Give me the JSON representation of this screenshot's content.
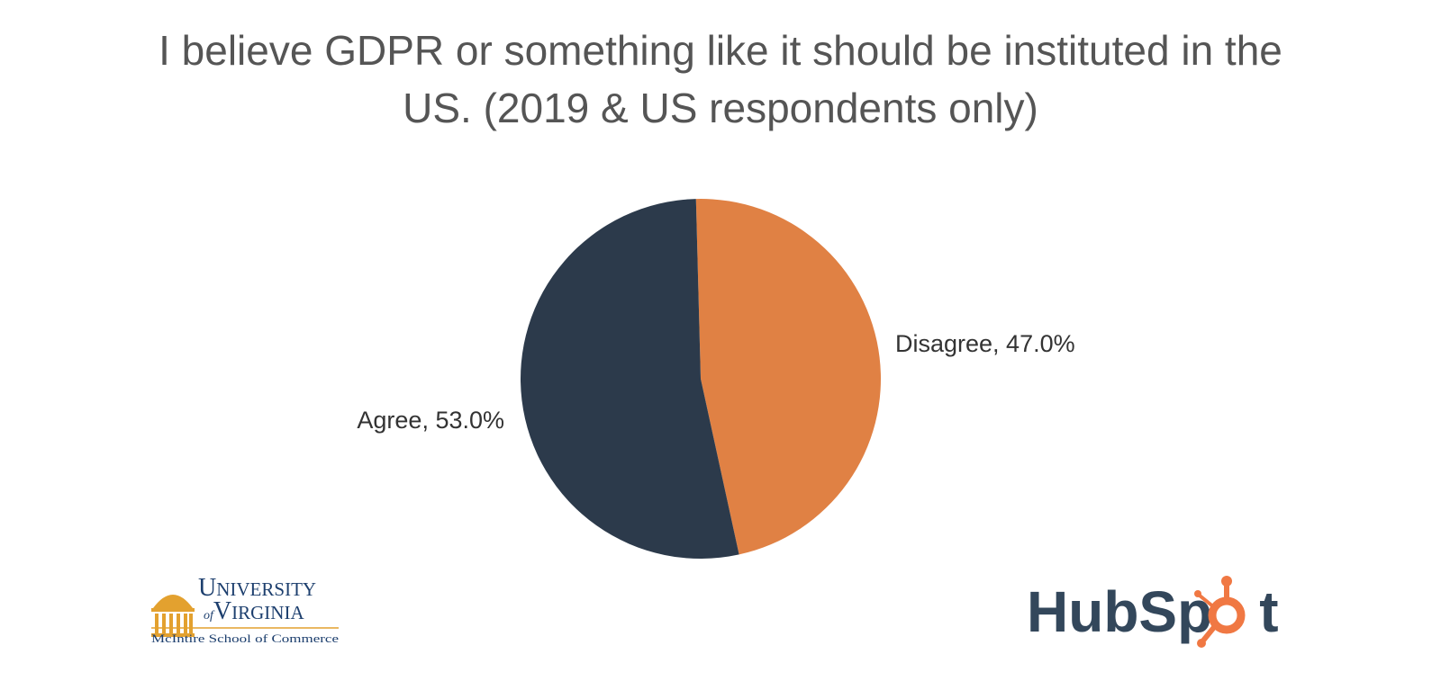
{
  "chart_data": {
    "type": "pie",
    "title": "I believe GDPR or something like it should be instituted in the US. (2019 & US respondents only)",
    "title_line1": "I believe GDPR or something like it should be instituted in the",
    "title_line2": "US. (2019 & US respondents only)",
    "categories": [
      "Disagree",
      "Agree"
    ],
    "values": [
      47.0,
      53.0
    ],
    "data_labels": [
      "Disagree, 47.0%",
      "Agree, 53.0%"
    ],
    "colors": [
      "#e08144",
      "#2c3a4b"
    ],
    "start_angle_deg": -1.5
  },
  "logos": {
    "uva": {
      "line1_first": "U",
      "line1_rest": "NIVERSITY",
      "line2_of": "of",
      "line2_first": "V",
      "line2_rest": "IRGINIA",
      "line3": "McIntire School of Commerce",
      "color": "#1d3f6e",
      "accent": "#e3a12f"
    },
    "hubspot": {
      "text_part1": "HubSp",
      "text_part2": "t",
      "text_color": "#33475b",
      "accent": "#f07843"
    }
  }
}
